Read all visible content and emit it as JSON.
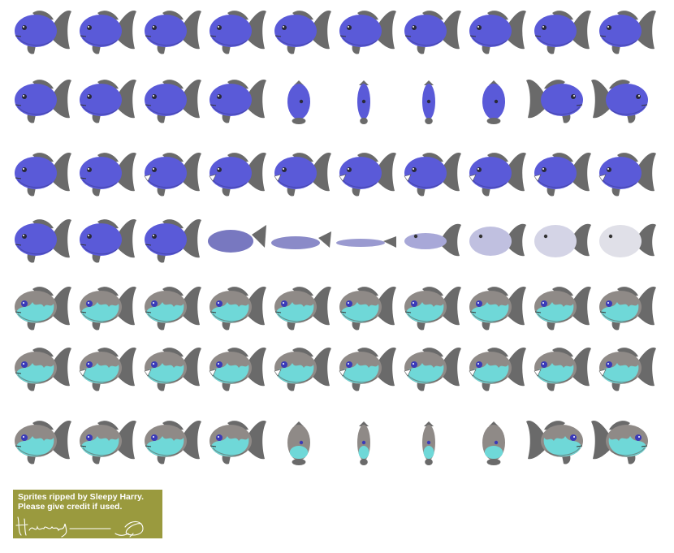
{
  "sheet": {
    "rows": [
      {
        "name": "blue-swim",
        "palette": "blue",
        "poses": [
          "side",
          "side",
          "side",
          "side",
          "side",
          "side",
          "side",
          "side",
          "side",
          "side"
        ]
      },
      {
        "name": "blue-turn",
        "palette": "blue",
        "poses": [
          "side",
          "side",
          "side",
          "side",
          "t1",
          "t2",
          "t2",
          "t1",
          "flip",
          "flip"
        ]
      },
      {
        "name": "blue-bite",
        "palette": "blue",
        "poses": [
          "side",
          "side",
          "bite",
          "bite",
          "bite",
          "bite",
          "bite",
          "bite",
          "bite",
          "bite"
        ]
      },
      {
        "name": "blue-faint",
        "palette": "blue",
        "poses": [
          "side",
          "side",
          "side",
          "flat1",
          "flat2",
          "flat3",
          "float1",
          "float2",
          "float3",
          "float4"
        ]
      },
      {
        "name": "shiny-swim",
        "palette": "shiny",
        "poses": [
          "side",
          "side",
          "side",
          "side",
          "side",
          "side",
          "side",
          "side",
          "side",
          "side"
        ]
      },
      {
        "name": "shiny-bite",
        "palette": "shiny",
        "poses": [
          "side",
          "bite",
          "bite",
          "bite",
          "bite",
          "bite",
          "bite",
          "bite",
          "bite",
          "bite"
        ]
      },
      {
        "name": "shiny-turn",
        "palette": "shiny",
        "poses": [
          "side",
          "side",
          "side",
          "side",
          "t1",
          "t2",
          "t2",
          "t1",
          "flip",
          "flip"
        ]
      }
    ],
    "palettes": {
      "blue": {
        "body": "#5a5ad8",
        "body_dark": "#3c3c9a",
        "fin": "#6a6a6a",
        "belly": "#5a5ad8",
        "eye": "#2a2a3a"
      },
      "shiny": {
        "body": "#8f8a87",
        "body_dark": "#5f5b58",
        "fin": "#6a6a6a",
        "belly": "#6fd8d8",
        "eye": "#3a3ab8"
      },
      "faint": [
        "#5a5ad8",
        "#6b6bc8",
        "#7878c0",
        "#8a8ac8",
        "#9a9ad0",
        "#a8a8d8",
        "#c0c0e0",
        "#d4d4e6",
        "#e0e0e8"
      ]
    }
  },
  "credit": {
    "line1": "Sprites ripped by Sleepy Harry.",
    "line2": "Please give credit if used.",
    "background": "#9a9a3e"
  }
}
